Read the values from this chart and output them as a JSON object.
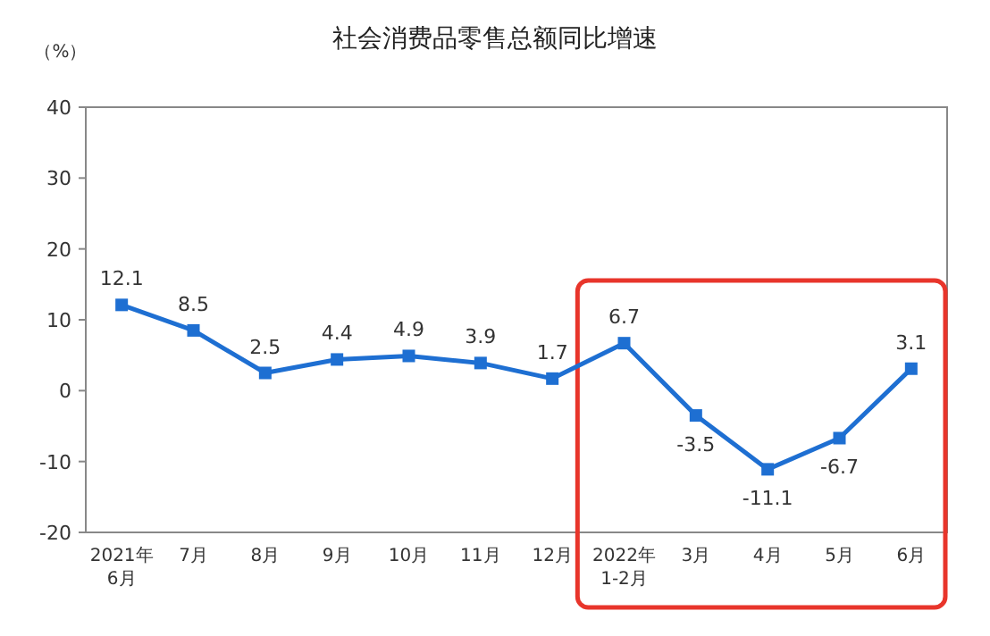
{
  "chart_data": {
    "type": "line",
    "title": "社会消费品零售总额同比增速",
    "ylabel": "（%）",
    "categories": [
      "2021年\n6月",
      "7月",
      "8月",
      "9月",
      "10月",
      "11月",
      "12月",
      "2022年\n1-2月",
      "3月",
      "4月",
      "5月",
      "6月"
    ],
    "series": [
      {
        "color": "#1e6fd2",
        "values": [
          12.1,
          8.5,
          2.5,
          4.4,
          4.9,
          3.9,
          1.7,
          6.7,
          -3.5,
          -11.1,
          -6.7,
          3.1
        ]
      }
    ],
    "ylim": [
      -20,
      40
    ],
    "yticks": [
      -20,
      -10,
      0,
      10,
      20,
      30,
      40
    ],
    "marker": "square",
    "line_style": "solid",
    "data_labels": true
  }
}
